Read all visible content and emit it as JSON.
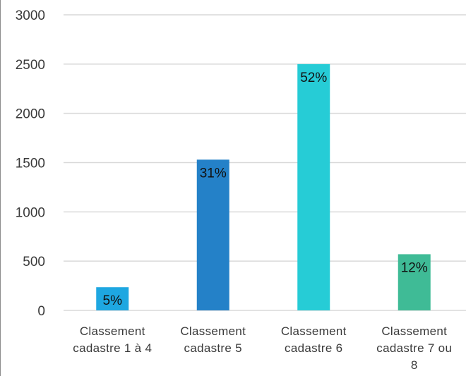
{
  "chart_data": {
    "type": "bar",
    "title": "",
    "xlabel": "",
    "ylabel": "",
    "ylim": [
      0,
      3000
    ],
    "yticks": [
      0,
      500,
      1000,
      1500,
      2000,
      2500,
      3000
    ],
    "grid": true,
    "legend": "none",
    "categories": [
      [
        "Classement",
        "cadastre 1 à 4"
      ],
      [
        "Classement",
        "cadastre 5"
      ],
      [
        "Classement",
        "cadastre 6"
      ],
      [
        "Classement",
        "cadastre 7 ou",
        "8"
      ]
    ],
    "values": [
      235,
      1530,
      2500,
      570
    ],
    "data_labels": [
      "5%",
      "31%",
      "52%",
      "12%"
    ],
    "colors": [
      "#1ea7e1",
      "#2481c8",
      "#26ccd6",
      "#3fbb96"
    ],
    "gridline_color": "#d9d9d9"
  }
}
